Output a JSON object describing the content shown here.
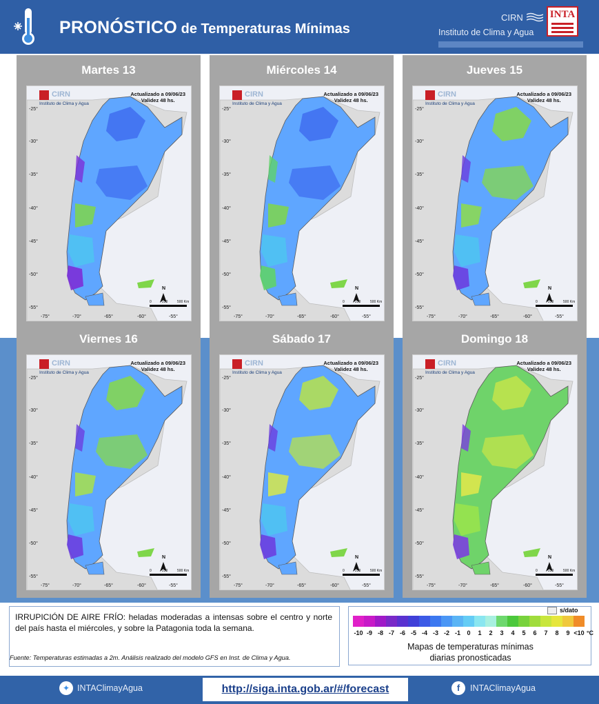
{
  "header": {
    "title_big": "PRONÓSTICO",
    "title_small": " de Temperaturas  Mínimas",
    "org_short": "CIRN",
    "org_full": "Instituto de Clima y Agua",
    "logo_text": "INTA",
    "icon": "thermometer-snowflake-icon"
  },
  "map_common": {
    "logo_cirn": "CIRN",
    "logo_inst": "Instituto de Clima y Agua",
    "updated": "Actualizado a 09/06/23",
    "validity": "Validez 48 hs.",
    "lat_labels": [
      "-25°",
      "-30°",
      "-35°",
      "-40°",
      "-45°",
      "-50°",
      "-55°"
    ],
    "lon_labels": [
      "-75°",
      "-70°",
      "-65°",
      "-60°",
      "-55°"
    ],
    "north": "N",
    "scale_labels": [
      "0",
      "250",
      "500 Km"
    ]
  },
  "days": [
    {
      "label": "Martes 13",
      "palette": [
        "#5fa6ff",
        "#3f6df0",
        "#7c2fd8",
        "#4cc7f0",
        "#7fd64a"
      ]
    },
    {
      "label": "Miércoles 14",
      "palette": [
        "#5fa6ff",
        "#3f6df0",
        "#5fd36a",
        "#4cc7f0",
        "#7fd64a"
      ]
    },
    {
      "label": "Jueves 15",
      "palette": [
        "#5fa6ff",
        "#86d84a",
        "#6b3fe0",
        "#4cc7f0",
        "#8edc4a"
      ]
    },
    {
      "label": "Viernes 16",
      "palette": [
        "#5fa6ff",
        "#86d84a",
        "#6b3fe0",
        "#4cc7f0",
        "#a8e04a"
      ]
    },
    {
      "label": "Sábado 17",
      "palette": [
        "#5fa6ff",
        "#b7e24a",
        "#6b3fe0",
        "#4cc7f0",
        "#d7e84a"
      ]
    },
    {
      "label": "Domingo 18",
      "palette": [
        "#6fd36a",
        "#c4e44a",
        "#7b3fe0",
        "#9ee64a",
        "#e4e84a"
      ]
    }
  ],
  "note": {
    "text": "IRRUPICIÓN DE AIRE FRÍO: heladas moderadas a intensas sobre el centro y norte del país hasta el miércoles, y sobre la Patagonia toda la semana.",
    "source": "Fuente: Temperaturas estimadas a 2m. Análisis realizado del modelo GFS en Inst. de Clima y Agua."
  },
  "legend": {
    "nodata": "s/dato",
    "labels": [
      "-10",
      "-9",
      "-8",
      "-7",
      "-6",
      "-5",
      "-4",
      "-3",
      "-2",
      "-1",
      "0",
      "1",
      "2",
      "3",
      "4",
      "5",
      "6",
      "7",
      "8",
      "9",
      "<10",
      "°C"
    ],
    "colors": [
      "#e020c8",
      "#c81ac8",
      "#a01ac8",
      "#7a2ac8",
      "#5a32d0",
      "#4040d8",
      "#3c5ae6",
      "#3c78f0",
      "#4a96f5",
      "#5ab4f5",
      "#64ccf5",
      "#8ae6f0",
      "#a8f0e0",
      "#6ed86e",
      "#4cc83c",
      "#78d23c",
      "#a0dc3c",
      "#c8e63c",
      "#e6e63c",
      "#f0c83c",
      "#f08c28"
    ],
    "caption_line1": "Mapas de temperaturas mínimas",
    "caption_line2": "diarias  pronosticadas"
  },
  "footer": {
    "twitter": "INTAClimayAgua",
    "url": "http://siga.inta.gob.ar/#/forecast",
    "facebook": "INTAClimayAgua"
  }
}
